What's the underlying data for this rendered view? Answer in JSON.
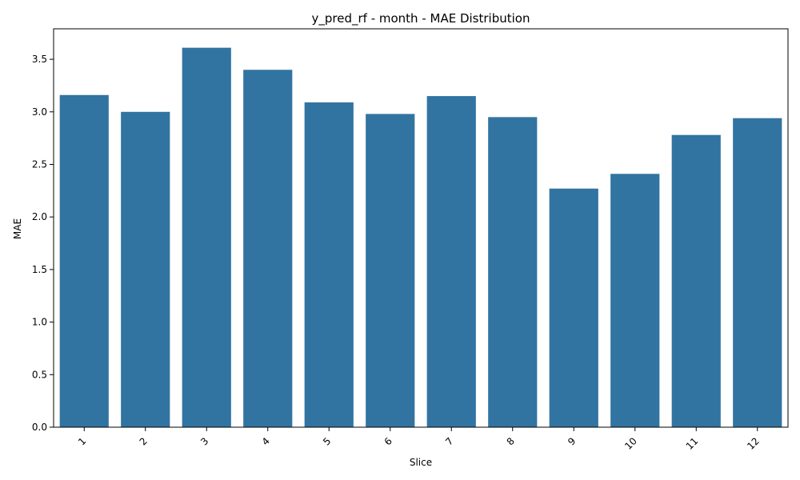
{
  "chart_data": {
    "type": "bar",
    "title": "y_pred_rf - month - MAE Distribution",
    "xlabel": "Slice",
    "ylabel": "MAE",
    "categories": [
      "1",
      "2",
      "3",
      "4",
      "5",
      "6",
      "7",
      "8",
      "9",
      "10",
      "11",
      "12"
    ],
    "values": [
      3.16,
      3.0,
      3.61,
      3.4,
      3.09,
      2.98,
      3.15,
      2.95,
      2.27,
      2.41,
      2.78,
      2.94
    ],
    "ylim": [
      0,
      3.79
    ],
    "yticks": [
      "0.0",
      "0.5",
      "1.0",
      "1.5",
      "2.0",
      "2.5",
      "3.0",
      "3.5"
    ],
    "xtick_rotation": 45,
    "grid": false,
    "legend": "none",
    "bar_color": "#3274a1"
  }
}
